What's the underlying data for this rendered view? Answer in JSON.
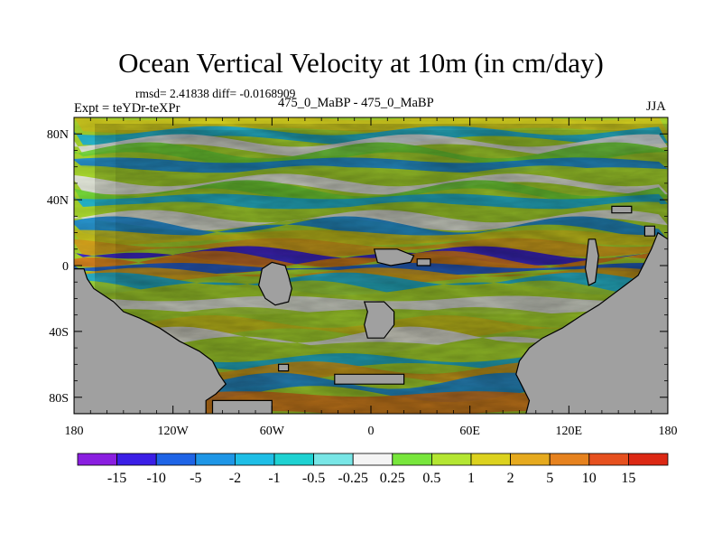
{
  "title": "Ocean Vertical Velocity at 10m (in cm/day)",
  "stats_line": "rmsd= 2.41838 diff= -0.0168909",
  "experiment_label": "Expt = teYDr-teXPr",
  "subtitle": "475_0_MaBP - 475_0_MaBP",
  "season": "JJA",
  "chart_data": {
    "type": "heatmap",
    "projection": "cylindrical equidistant",
    "field": "ocean vertical velocity difference at 10 m depth",
    "units": "cm/day",
    "x_range": [
      -180,
      180
    ],
    "y_range": [
      -90,
      90
    ],
    "x_ticks": [
      {
        "value": -180,
        "label": "180"
      },
      {
        "value": -120,
        "label": "120W"
      },
      {
        "value": -60,
        "label": "60W"
      },
      {
        "value": 0,
        "label": "0"
      },
      {
        "value": 60,
        "label": "60E"
      },
      {
        "value": 120,
        "label": "120E"
      },
      {
        "value": 180,
        "label": "180"
      }
    ],
    "y_ticks": [
      {
        "value": 80,
        "label": "80N"
      },
      {
        "value": 40,
        "label": "40N"
      },
      {
        "value": 0,
        "label": "0"
      },
      {
        "value": -40,
        "label": "40S"
      },
      {
        "value": -80,
        "label": "80S"
      }
    ],
    "land_color": "#a0a0a0",
    "contour_levels": [
      "-15",
      "-10",
      "-5",
      "-2",
      "-1",
      "-0.5",
      "-0.25",
      "0.25",
      "0.5",
      "1",
      "2",
      "5",
      "10",
      "15"
    ],
    "colorbar_colors": [
      "#8a1ee0",
      "#3b1ee6",
      "#1e64e6",
      "#1e96e6",
      "#1ebee6",
      "#1ed2d2",
      "#78e6e6",
      "#f4f4f4",
      "#78e63c",
      "#b4e632",
      "#dcd21e",
      "#e6aa1e",
      "#e6821e",
      "#e6501e",
      "#dc2814"
    ],
    "land_polygons": [
      {
        "name": "paleo-continent-west",
        "points": [
          [
            -180,
            -90
          ],
          [
            -180,
            -2
          ],
          [
            -174,
            -2
          ],
          [
            -172,
            -8
          ],
          [
            -168,
            -14
          ],
          [
            -162,
            -18
          ],
          [
            -156,
            -22
          ],
          [
            -150,
            -28
          ],
          [
            -140,
            -32
          ],
          [
            -128,
            -38
          ],
          [
            -116,
            -46
          ],
          [
            -104,
            -52
          ],
          [
            -96,
            -58
          ],
          [
            -92,
            -66
          ],
          [
            -88,
            -72
          ],
          [
            -94,
            -78
          ],
          [
            -100,
            -82
          ],
          [
            -100,
            -90
          ]
        ]
      },
      {
        "name": "paleo-continent-east",
        "points": [
          [
            180,
            -90
          ],
          [
            180,
            16
          ],
          [
            174,
            20
          ],
          [
            170,
            10
          ],
          [
            166,
            2
          ],
          [
            162,
            -6
          ],
          [
            154,
            -12
          ],
          [
            146,
            -18
          ],
          [
            138,
            -24
          ],
          [
            128,
            -30
          ],
          [
            116,
            -38
          ],
          [
            104,
            -44
          ],
          [
            96,
            -50
          ],
          [
            90,
            -58
          ],
          [
            88,
            -66
          ],
          [
            92,
            -74
          ],
          [
            96,
            -82
          ],
          [
            94,
            -90
          ]
        ]
      },
      {
        "name": "island-pacific",
        "points": [
          [
            -66,
            -2
          ],
          [
            -60,
            2
          ],
          [
            -52,
            0
          ],
          [
            -50,
            -6
          ],
          [
            -48,
            -14
          ],
          [
            -50,
            -22
          ],
          [
            -58,
            -24
          ],
          [
            -64,
            -20
          ],
          [
            -68,
            -12
          ]
        ]
      },
      {
        "name": "island-south-atlantic",
        "points": [
          [
            -4,
            -22
          ],
          [
            8,
            -22
          ],
          [
            14,
            -28
          ],
          [
            14,
            -36
          ],
          [
            8,
            -44
          ],
          [
            -2,
            -44
          ],
          [
            -4,
            -36
          ],
          [
            -2,
            -28
          ]
        ]
      },
      {
        "name": "island-equatorial-1",
        "points": [
          [
            2,
            10
          ],
          [
            16,
            10
          ],
          [
            26,
            6
          ],
          [
            24,
            2
          ],
          [
            12,
            0
          ],
          [
            4,
            2
          ]
        ]
      },
      {
        "name": "island-equatorial-2",
        "points": [
          [
            28,
            4
          ],
          [
            36,
            4
          ],
          [
            36,
            0
          ],
          [
            28,
            0
          ]
        ]
      },
      {
        "name": "island-east-arc",
        "points": [
          [
            132,
            16
          ],
          [
            136,
            16
          ],
          [
            138,
            6
          ],
          [
            136,
            -10
          ],
          [
            132,
            -12
          ],
          [
            130,
            -2
          ]
        ]
      },
      {
        "name": "island-north-east",
        "points": [
          [
            146,
            36
          ],
          [
            158,
            36
          ],
          [
            158,
            32
          ],
          [
            146,
            32
          ]
        ]
      },
      {
        "name": "island-far-east",
        "points": [
          [
            166,
            24
          ],
          [
            172,
            24
          ],
          [
            172,
            18
          ],
          [
            166,
            18
          ]
        ]
      },
      {
        "name": "island-south-strip",
        "points": [
          [
            -22,
            -66
          ],
          [
            20,
            -66
          ],
          [
            20,
            -72
          ],
          [
            -22,
            -72
          ]
        ]
      },
      {
        "name": "island-south-small",
        "points": [
          [
            -56,
            -60
          ],
          [
            -50,
            -60
          ],
          [
            -50,
            -64
          ],
          [
            -56,
            -64
          ]
        ]
      },
      {
        "name": "antarctic-sliver",
        "points": [
          [
            -96,
            -82
          ],
          [
            -60,
            -82
          ],
          [
            -60,
            -90
          ],
          [
            -96,
            -90
          ]
        ]
      }
    ]
  }
}
